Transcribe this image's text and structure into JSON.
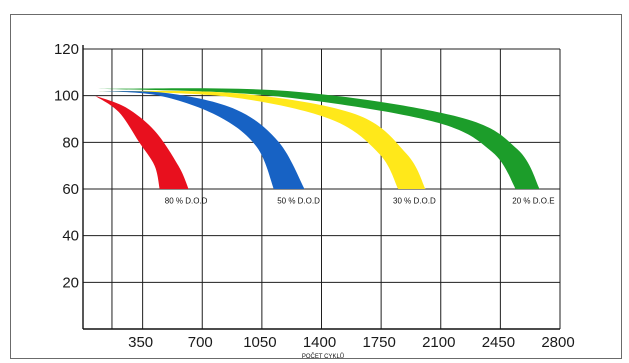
{
  "chart_data": {
    "type": "area",
    "xlabel": "POČET CYKLŮ",
    "ylabel": "",
    "xlim": [
      0,
      2800
    ],
    "ylim": [
      0,
      120
    ],
    "x_ticks": [
      350,
      700,
      1050,
      1400,
      1750,
      2100,
      2450,
      2800
    ],
    "x_tick_labels": [
      "350",
      "700",
      "1050",
      "1400",
      "1750",
      "2100",
      "2450",
      "2800"
    ],
    "y_ticks": [
      20,
      40,
      60,
      80,
      100,
      120
    ],
    "y_tick_labels": [
      "20",
      "40",
      "60",
      "80",
      "100",
      "120"
    ],
    "vertical_gridlines_at": [
      170,
      350,
      700,
      1050,
      1400,
      1750,
      2100,
      2450,
      2800
    ],
    "grid": true,
    "series": [
      {
        "name": "80 % D.O.D",
        "color": "#e8101e",
        "upper": [
          [
            70,
            100
          ],
          [
            250,
            95
          ],
          [
            420,
            85
          ],
          [
            560,
            70
          ],
          [
            620,
            60
          ]
        ],
        "lower": [
          [
            70,
            100
          ],
          [
            210,
            93
          ],
          [
            330,
            80
          ],
          [
            420,
            70
          ],
          [
            450,
            60
          ]
        ],
        "label_at": [
          480,
          56
        ]
      },
      {
        "name": "50 % D.O.D",
        "color": "#1762c4",
        "upper": [
          [
            90,
            102
          ],
          [
            500,
            101
          ],
          [
            900,
            94
          ],
          [
            1150,
            80
          ],
          [
            1300,
            60
          ]
        ],
        "lower": [
          [
            90,
            102
          ],
          [
            450,
            100
          ],
          [
            800,
            91
          ],
          [
            1020,
            78
          ],
          [
            1120,
            60
          ]
        ],
        "label_at": [
          1140,
          56
        ]
      },
      {
        "name": "30 % D.O.D",
        "color": "#ffe81a",
        "upper": [
          [
            90,
            102
          ],
          [
            900,
            101
          ],
          [
            1600,
            92
          ],
          [
            1900,
            75
          ],
          [
            2010,
            60
          ]
        ],
        "lower": [
          [
            90,
            102
          ],
          [
            850,
            99.5
          ],
          [
            1450,
            90
          ],
          [
            1740,
            75
          ],
          [
            1850,
            60
          ]
        ],
        "label_at": [
          1820,
          56
        ]
      },
      {
        "name": "20 % D.O.E",
        "color": "#1c9d2a",
        "upper": [
          [
            90,
            103
          ],
          [
            1200,
            102
          ],
          [
            2200,
            91
          ],
          [
            2550,
            77
          ],
          [
            2680,
            60
          ]
        ],
        "lower": [
          [
            90,
            103
          ],
          [
            1100,
            100
          ],
          [
            2050,
            89
          ],
          [
            2400,
            76
          ],
          [
            2540,
            60
          ]
        ],
        "label_at": [
          2520,
          56
        ]
      }
    ]
  }
}
